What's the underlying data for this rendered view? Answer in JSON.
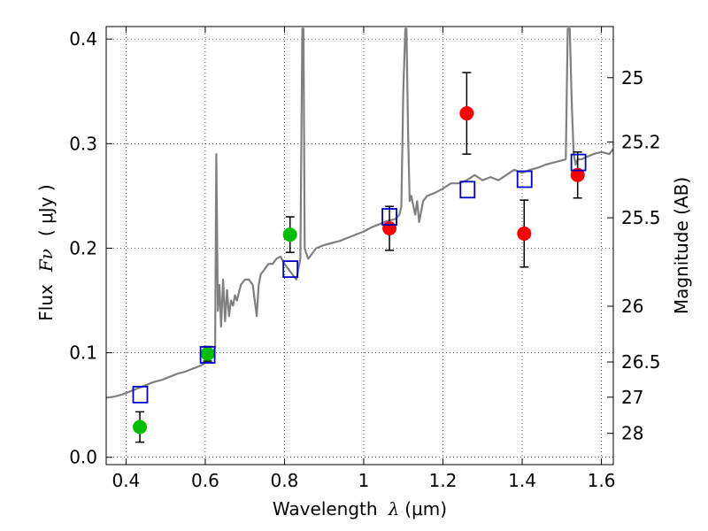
{
  "chart_data": {
    "type": "scatter",
    "title": "",
    "xlabel": "Wavelength",
    "xlabel_symbol": "λ",
    "xlabel_unit": "(μm)",
    "ylabel": "Flux",
    "ylabel_symbol": "Fν",
    "ylabel_unit": "( μJy )",
    "y2label": "Magnitude (AB)",
    "xlim": [
      0.35,
      1.63
    ],
    "ylim": [
      -0.007,
      0.412
    ],
    "grid": true,
    "x_ticks": [
      0.4,
      0.6,
      0.8,
      1.0,
      1.2,
      1.4,
      1.6
    ],
    "x_tick_labels": [
      "0.4",
      "0.6",
      "0.8",
      "1",
      "1.2",
      "1.4",
      "1.6"
    ],
    "y_ticks": [
      0.0,
      0.1,
      0.2,
      0.3,
      0.4
    ],
    "y_tick_labels": [
      "0.0",
      "0.1",
      "0.2",
      "0.3",
      "0.4"
    ],
    "y2_ticks": [
      {
        "flux": 0.3631,
        "label": "25"
      },
      {
        "flux": 0.3016,
        "label": "25.2"
      },
      {
        "flux": 0.2291,
        "label": "25.5"
      },
      {
        "flux": 0.1445,
        "label": "26"
      },
      {
        "flux": 0.0912,
        "label": "26.5"
      },
      {
        "flux": 0.0575,
        "label": "27"
      },
      {
        "flux": 0.0229,
        "label": "28"
      }
    ],
    "series": [
      {
        "kind": "line",
        "color": "#808080",
        "x": [
          0.35,
          0.37,
          0.39,
          0.41,
          0.43,
          0.45,
          0.47,
          0.49,
          0.51,
          0.53,
          0.55,
          0.57,
          0.59,
          0.61,
          0.615,
          0.62,
          0.625,
          0.628,
          0.632,
          0.636,
          0.64,
          0.645,
          0.65,
          0.655,
          0.66,
          0.665,
          0.67,
          0.675,
          0.68,
          0.69,
          0.7,
          0.71,
          0.72,
          0.73,
          0.735,
          0.74,
          0.75,
          0.76,
          0.77,
          0.78,
          0.79,
          0.8,
          0.81,
          0.82,
          0.83,
          0.84,
          0.845,
          0.848,
          0.851,
          0.855,
          0.86,
          0.88,
          0.9,
          0.92,
          0.94,
          0.96,
          0.98,
          1.0,
          1.02,
          1.04,
          1.06,
          1.08,
          1.09,
          1.095,
          1.1,
          1.105,
          1.108,
          1.112,
          1.116,
          1.12,
          1.13,
          1.135,
          1.14,
          1.15,
          1.16,
          1.18,
          1.2,
          1.22,
          1.24,
          1.26,
          1.28,
          1.3,
          1.32,
          1.34,
          1.36,
          1.38,
          1.4,
          1.42,
          1.44,
          1.46,
          1.48,
          1.5,
          1.51,
          1.515,
          1.52,
          1.525,
          1.53,
          1.535,
          1.54,
          1.55,
          1.56,
          1.58,
          1.6,
          1.62,
          1.63
        ],
        "y": [
          0.057,
          0.058,
          0.06,
          0.063,
          0.066,
          0.069,
          0.072,
          0.074,
          0.077,
          0.08,
          0.082,
          0.085,
          0.088,
          0.093,
          0.097,
          0.1,
          0.105,
          0.29,
          0.14,
          0.165,
          0.125,
          0.17,
          0.13,
          0.16,
          0.135,
          0.15,
          0.145,
          0.155,
          0.15,
          0.165,
          0.17,
          0.17,
          0.165,
          0.135,
          0.165,
          0.175,
          0.18,
          0.185,
          0.185,
          0.19,
          0.192,
          0.185,
          0.18,
          0.175,
          0.17,
          0.19,
          0.41,
          0.41,
          0.2,
          0.195,
          0.19,
          0.2,
          0.203,
          0.205,
          0.207,
          0.21,
          0.213,
          0.216,
          0.22,
          0.223,
          0.226,
          0.228,
          0.232,
          0.24,
          0.35,
          0.41,
          0.41,
          0.31,
          0.245,
          0.25,
          0.232,
          0.245,
          0.225,
          0.245,
          0.25,
          0.253,
          0.257,
          0.262,
          0.262,
          0.265,
          0.27,
          0.265,
          0.268,
          0.265,
          0.27,
          0.275,
          0.272,
          0.275,
          0.277,
          0.28,
          0.282,
          0.284,
          0.285,
          0.41,
          0.41,
          0.34,
          0.29,
          0.28,
          0.285,
          0.285,
          0.287,
          0.29,
          0.292,
          0.29,
          0.295
        ]
      },
      {
        "kind": "points",
        "marker": "circle",
        "color": "#00bf00",
        "points": [
          {
            "x": 0.435,
            "y": 0.029,
            "err": 0.0145
          },
          {
            "x": 0.606,
            "y": 0.099,
            "err": 0.007
          },
          {
            "x": 0.814,
            "y": 0.213,
            "err": 0.017
          }
        ]
      },
      {
        "kind": "points",
        "marker": "circle",
        "color": "#ff0000",
        "points": [
          {
            "x": 1.065,
            "y": 0.219,
            "err": 0.021
          },
          {
            "x": 1.26,
            "y": 0.329,
            "err": 0.039
          },
          {
            "x": 1.405,
            "y": 0.214,
            "err": 0.032
          },
          {
            "x": 1.54,
            "y": 0.27,
            "err": 0.022
          }
        ]
      },
      {
        "kind": "points",
        "marker": "open-square",
        "color": "#0000c8",
        "points": [
          {
            "x": 0.436,
            "y": 0.06
          },
          {
            "x": 0.606,
            "y": 0.098
          },
          {
            "x": 0.815,
            "y": 0.18
          },
          {
            "x": 1.065,
            "y": 0.23
          },
          {
            "x": 1.262,
            "y": 0.256
          },
          {
            "x": 1.406,
            "y": 0.266
          },
          {
            "x": 1.542,
            "y": 0.282
          }
        ]
      }
    ]
  }
}
